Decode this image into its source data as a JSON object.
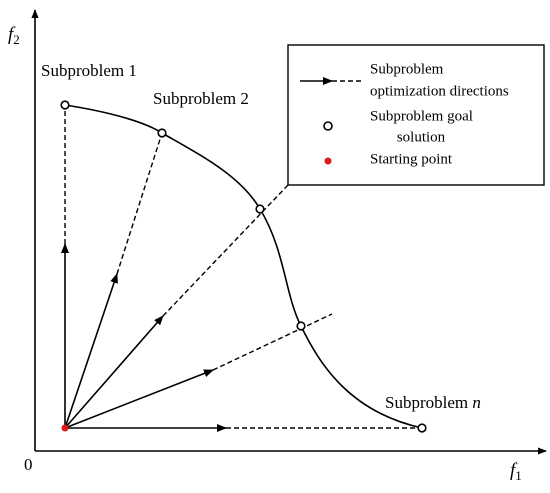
{
  "axes": {
    "y_label": {
      "base": "f",
      "sub": "2"
    },
    "x_label": {
      "base": "f",
      "sub": "1"
    },
    "origin": "0"
  },
  "subproblems": {
    "first": "Subproblem 1",
    "second": "Subproblem 2",
    "last": {
      "label": "Subproblem",
      "index": "n"
    }
  },
  "legend": {
    "directions": [
      "Subproblem",
      "optimization directions"
    ],
    "goal": [
      "Subproblem goal",
      "solution"
    ],
    "start": "Starting point"
  }
}
